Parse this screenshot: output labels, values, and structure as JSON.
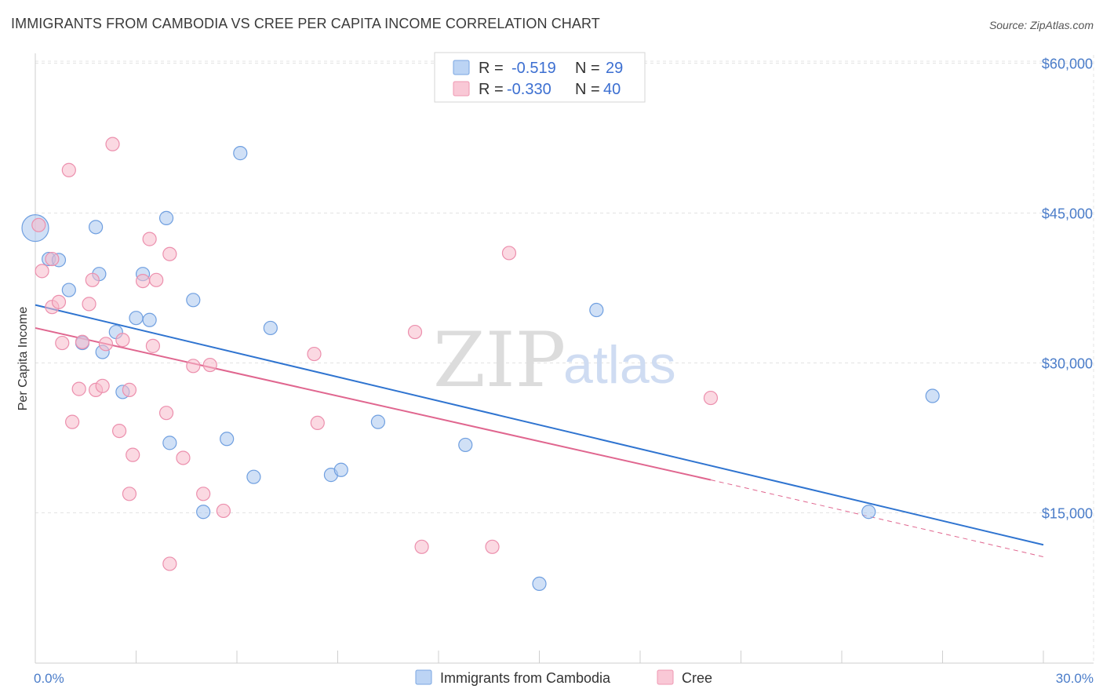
{
  "title": "IMMIGRANTS FROM CAMBODIA VS CREE PER CAPITA INCOME CORRELATION CHART",
  "source": "Source: ZipAtlas.com",
  "watermark": {
    "zip": "ZIP",
    "atlas": "atlas"
  },
  "colors": {
    "blue_fill": "#a9c6ee",
    "blue_stroke": "#6f9fe0",
    "blue_line": "#2f74d0",
    "pink_fill": "#f7b9cb",
    "pink_stroke": "#ec8fad",
    "pink_line": "#e0668f",
    "grid": "#e3e3e3",
    "axis_text": "#4a7cc9"
  },
  "legend_top": [
    {
      "r_label": "R =",
      "r_value": "-0.519",
      "n_label": "N =",
      "n_value": "29",
      "color": "blue"
    },
    {
      "r_label": "R =",
      "r_value": "-0.330",
      "n_label": "N =",
      "n_value": "40",
      "color": "pink"
    }
  ],
  "legend_bottom": [
    {
      "label": "Immigrants from Cambodia",
      "color": "blue"
    },
    {
      "label": "Cree",
      "color": "pink"
    }
  ],
  "chart_data": {
    "type": "scatter",
    "title": "IMMIGRANTS FROM CAMBODIA VS CREE PER CAPITA INCOME CORRELATION CHART",
    "xlabel": "",
    "ylabel": "Per Capita Income",
    "xlim": [
      0,
      30
    ],
    "ylim": [
      0,
      62000
    ],
    "x_tick_labels": [
      "0.0%",
      "30.0%"
    ],
    "y_ticks": [
      15000,
      30000,
      45000,
      60000
    ],
    "y_tick_labels": [
      "$15,000",
      "$30,000",
      "$45,000",
      "$60,000"
    ],
    "grid": true,
    "legend_placement": "top-center and bottom",
    "series": [
      {
        "name": "Immigrants from Cambodia",
        "color": "blue",
        "points": [
          [
            0.0,
            43500,
            3
          ],
          [
            0.4,
            40400,
            1
          ],
          [
            0.7,
            40300,
            1
          ],
          [
            1.0,
            37300,
            1
          ],
          [
            1.4,
            32000,
            1
          ],
          [
            1.8,
            43600,
            1
          ],
          [
            1.9,
            38900,
            1
          ],
          [
            2.0,
            31100,
            1
          ],
          [
            2.4,
            33100,
            1
          ],
          [
            2.6,
            27100,
            1
          ],
          [
            3.0,
            34500,
            1
          ],
          [
            3.2,
            38900,
            1
          ],
          [
            3.4,
            34300,
            1
          ],
          [
            3.9,
            44500,
            1
          ],
          [
            4.0,
            22000,
            1
          ],
          [
            4.7,
            36300,
            1
          ],
          [
            5.0,
            15100,
            1
          ],
          [
            5.7,
            22400,
            1
          ],
          [
            6.1,
            51000,
            1
          ],
          [
            6.5,
            18600,
            1
          ],
          [
            7.0,
            33500,
            1
          ],
          [
            8.8,
            18800,
            1
          ],
          [
            9.1,
            19300,
            1
          ],
          [
            10.2,
            24100,
            1
          ],
          [
            12.8,
            21800,
            1
          ],
          [
            15.0,
            7900,
            1
          ],
          [
            16.7,
            35300,
            1
          ],
          [
            24.8,
            15100,
            1
          ],
          [
            26.7,
            26700,
            1
          ]
        ],
        "trend": {
          "x": [
            0.0,
            30.0
          ],
          "y": [
            35800,
            11800
          ]
        }
      },
      {
        "name": "Cree",
        "color": "pink",
        "points": [
          [
            0.1,
            43800,
            1
          ],
          [
            0.2,
            39200,
            1
          ],
          [
            0.5,
            40400,
            1
          ],
          [
            0.5,
            35600,
            1
          ],
          [
            0.7,
            36100,
            1
          ],
          [
            0.8,
            32000,
            1
          ],
          [
            1.0,
            49300,
            1
          ],
          [
            1.1,
            24100,
            1
          ],
          [
            1.3,
            27400,
            1
          ],
          [
            1.4,
            32100,
            1
          ],
          [
            1.6,
            35900,
            1
          ],
          [
            1.7,
            38300,
            1
          ],
          [
            1.8,
            27300,
            1
          ],
          [
            2.0,
            27700,
            1
          ],
          [
            2.1,
            31900,
            1
          ],
          [
            2.3,
            51900,
            1
          ],
          [
            2.5,
            23200,
            1
          ],
          [
            2.6,
            32300,
            1
          ],
          [
            2.8,
            27300,
            1
          ],
          [
            2.8,
            16900,
            1
          ],
          [
            2.9,
            20800,
            1
          ],
          [
            3.2,
            38200,
            1
          ],
          [
            3.4,
            42400,
            1
          ],
          [
            3.5,
            31700,
            1
          ],
          [
            3.6,
            38300,
            1
          ],
          [
            3.9,
            25000,
            1
          ],
          [
            4.0,
            40900,
            1
          ],
          [
            4.0,
            9900,
            1
          ],
          [
            4.4,
            20500,
            1
          ],
          [
            4.7,
            29700,
            1
          ],
          [
            5.0,
            16900,
            1
          ],
          [
            5.2,
            29800,
            1
          ],
          [
            5.6,
            15200,
            1
          ],
          [
            8.3,
            30900,
            1
          ],
          [
            8.4,
            24000,
            1
          ],
          [
            11.3,
            33100,
            1
          ],
          [
            11.5,
            11600,
            1
          ],
          [
            13.6,
            11600,
            1
          ],
          [
            14.1,
            41000,
            1
          ],
          [
            20.1,
            26500,
            1
          ]
        ],
        "trend": {
          "x": [
            0.0,
            20.1
          ],
          "y": [
            33500,
            18300
          ]
        },
        "trend_dashed": {
          "x": [
            20.1,
            30.0
          ],
          "y": [
            18300,
            10600
          ]
        }
      }
    ]
  }
}
